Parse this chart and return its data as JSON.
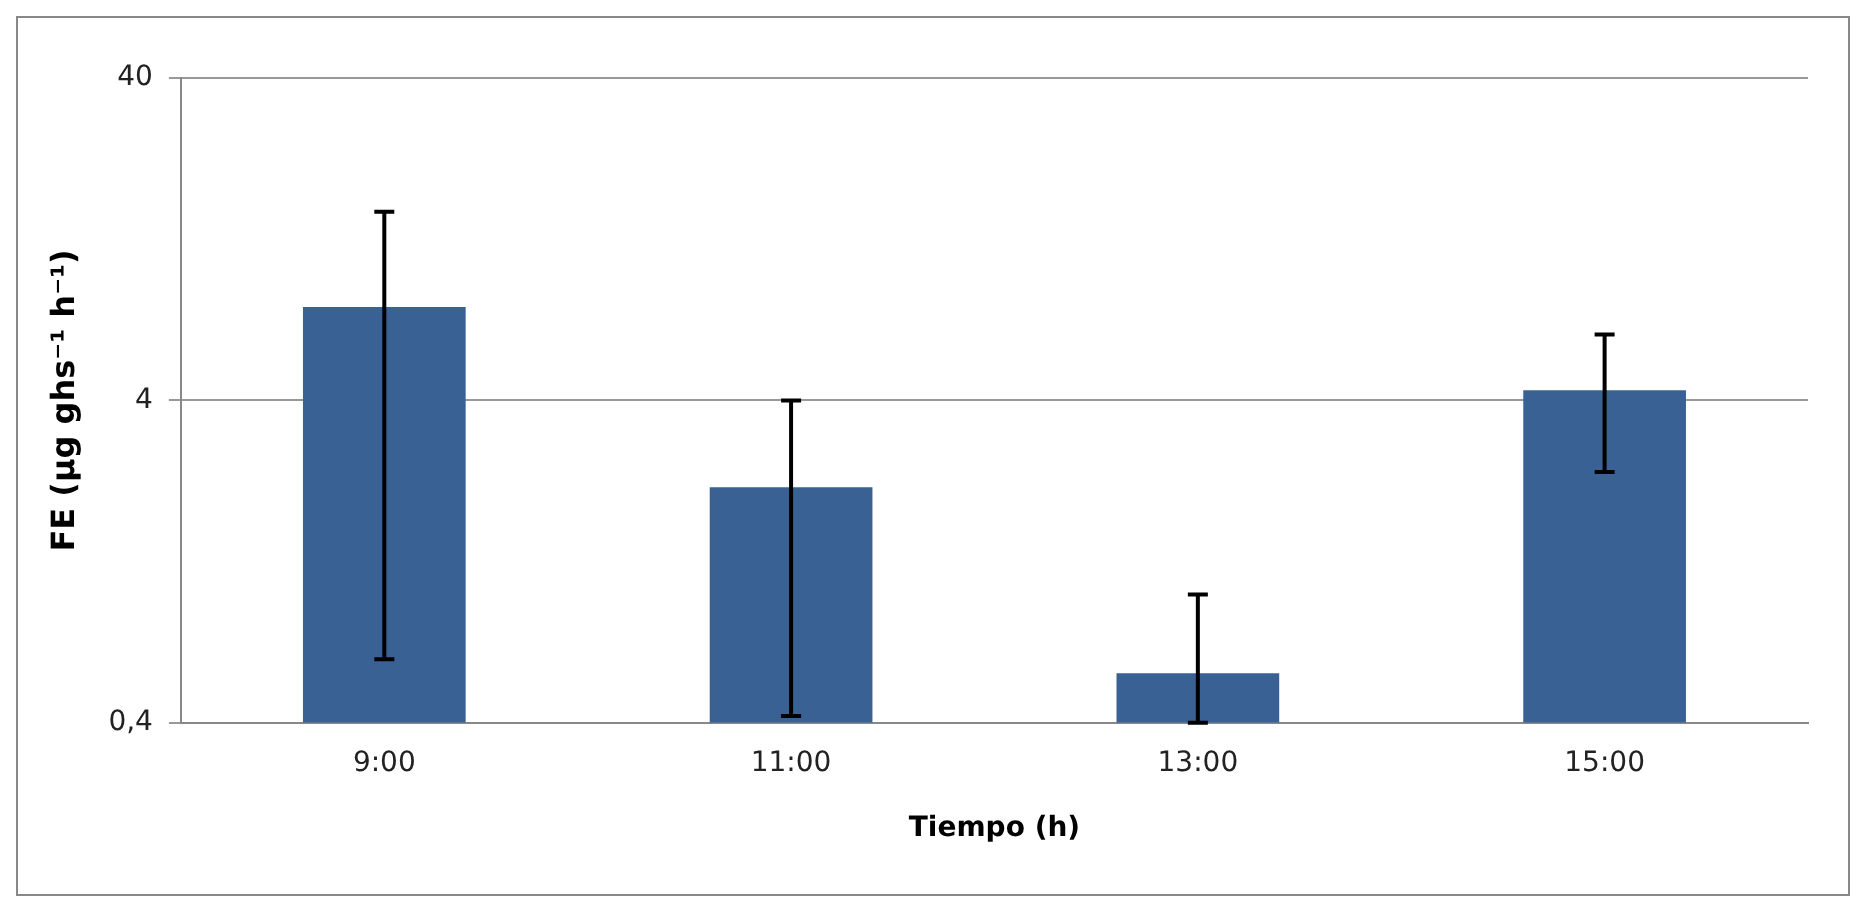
{
  "chart_data": {
    "type": "bar",
    "xlabel": "Tiempo (h)",
    "ylabel": "FE (µg ghs⁻¹ h⁻¹)",
    "categories": [
      "9:00",
      "11:00",
      "13:00",
      "15:00"
    ],
    "values": [
      7.8,
      2.15,
      0.57,
      4.3
    ],
    "errors": [
      [
        0.63,
        15.4
      ],
      [
        0.42,
        4.0
      ],
      [
        0.4,
        1.0
      ],
      [
        2.4,
        6.4
      ]
    ],
    "color": "#3a6193",
    "log": true,
    "ylim": [
      0.4,
      40
    ],
    "yticks": [
      {
        "value": 0.4,
        "label": "0,4"
      },
      4,
      40
    ],
    "grid": "y",
    "legend": false
  }
}
